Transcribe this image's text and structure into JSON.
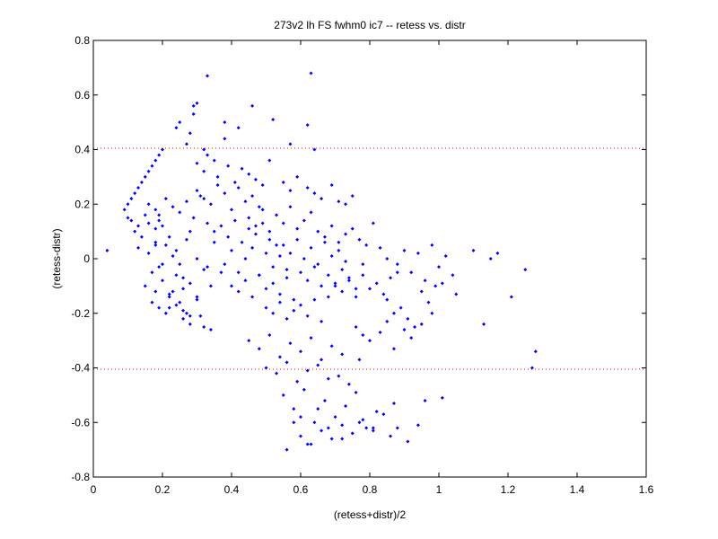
{
  "chart_data": {
    "type": "scatter",
    "title": "273v2 lh FS fwhm0 ic7 -- retess vs. distr",
    "xlabel": "(retess+distr)/2",
    "ylabel": "(retess-distr)",
    "xlim": [
      0,
      1.6
    ],
    "ylim": [
      -0.8,
      0.8
    ],
    "xticks": [
      "0",
      "0.2",
      "0.4",
      "0.6",
      "0.8",
      "1",
      "1.2",
      "1.4",
      "1.6"
    ],
    "yticks": [
      "-0.8",
      "-0.6",
      "-0.4",
      "-0.2",
      "0",
      "0.2",
      "0.4",
      "0.6",
      "0.8"
    ],
    "reference_lines": [
      0.405,
      -0.405
    ],
    "colors": {
      "points": "#0000ff",
      "reference_lines": "#ff0000"
    },
    "series": [
      {
        "x": [
          0.04,
          0.09,
          0.1,
          0.11,
          0.12,
          0.13,
          0.14,
          0.15,
          0.16,
          0.17,
          0.18,
          0.19,
          0.2,
          0.1,
          0.11,
          0.13,
          0.15,
          0.16,
          0.18,
          0.19,
          0.2,
          0.12,
          0.13,
          0.14,
          0.16,
          0.18,
          0.19,
          0.21,
          0.23,
          0.25,
          0.27,
          0.15,
          0.17,
          0.18,
          0.2,
          0.22,
          0.24,
          0.26,
          0.28,
          0.3,
          0.32,
          0.16,
          0.18,
          0.19,
          0.21,
          0.23,
          0.25,
          0.27,
          0.29,
          0.31,
          0.33,
          0.17,
          0.19,
          0.21,
          0.22,
          0.24,
          0.26,
          0.28,
          0.3,
          0.32,
          0.34,
          0.18,
          0.2,
          0.22,
          0.24,
          0.26,
          0.28,
          0.3,
          0.33,
          0.35,
          0.37,
          0.24,
          0.25,
          0.27,
          0.28,
          0.29,
          0.3,
          0.32,
          0.33,
          0.35,
          0.38,
          0.3,
          0.32,
          0.34,
          0.36,
          0.38,
          0.4,
          0.42,
          0.44,
          0.46,
          0.48,
          0.35,
          0.37,
          0.39,
          0.41,
          0.43,
          0.45,
          0.47,
          0.49,
          0.51,
          0.53,
          0.38,
          0.4,
          0.42,
          0.44,
          0.46,
          0.48,
          0.5,
          0.52,
          0.54,
          0.56,
          0.4,
          0.42,
          0.44,
          0.46,
          0.48,
          0.5,
          0.52,
          0.54,
          0.56,
          0.58,
          0.45,
          0.47,
          0.49,
          0.51,
          0.53,
          0.55,
          0.57,
          0.59,
          0.61,
          0.63,
          0.5,
          0.52,
          0.54,
          0.56,
          0.58,
          0.6,
          0.62,
          0.64,
          0.66,
          0.68,
          0.55,
          0.57,
          0.59,
          0.61,
          0.63,
          0.65,
          0.67,
          0.69,
          0.71,
          0.73,
          0.6,
          0.62,
          0.64,
          0.66,
          0.68,
          0.7,
          0.72,
          0.74,
          0.76,
          0.78,
          0.65,
          0.67,
          0.69,
          0.71,
          0.73,
          0.75,
          0.77,
          0.79,
          0.81,
          0.83,
          0.7,
          0.72,
          0.74,
          0.76,
          0.78,
          0.8,
          0.82,
          0.84,
          0.86,
          0.88,
          0.45,
          0.48,
          0.51,
          0.54,
          0.57,
          0.6,
          0.63,
          0.66,
          0.69,
          0.72,
          0.5,
          0.53,
          0.56,
          0.59,
          0.62,
          0.65,
          0.68,
          0.71,
          0.74,
          0.77,
          0.55,
          0.58,
          0.61,
          0.64,
          0.67,
          0.7,
          0.73,
          0.76,
          0.79,
          0.82,
          0.6,
          0.63,
          0.66,
          0.69,
          0.72,
          0.75,
          0.78,
          0.81,
          0.84,
          0.87,
          0.85,
          0.88,
          0.9,
          0.92,
          0.94,
          0.96,
          0.98,
          1.0,
          1.02,
          1.04,
          0.85,
          0.87,
          0.89,
          0.91,
          0.93,
          0.95,
          0.97,
          0.99,
          1.01,
          1.05,
          1.1,
          1.13,
          1.15,
          1.17,
          1.21,
          1.25,
          1.27,
          1.28,
          0.33,
          0.46,
          0.63,
          0.62,
          0.29,
          0.38,
          0.42,
          0.52,
          0.57,
          0.64,
          0.56,
          0.58,
          0.6,
          0.62,
          0.65,
          0.68,
          0.72,
          0.77,
          0.81,
          0.86,
          0.88,
          0.91,
          0.94,
          0.96,
          1.01,
          0.25,
          0.27,
          0.22,
          0.23,
          0.26,
          0.28,
          0.31,
          0.34,
          0.3,
          0.32,
          0.36,
          0.39,
          0.41,
          0.43,
          0.45,
          0.47,
          0.49,
          0.51,
          0.55,
          0.57,
          0.59,
          0.62,
          0.64,
          0.66,
          0.69,
          0.71,
          0.73,
          0.75,
          0.76,
          0.78,
          0.8,
          0.83,
          0.85,
          0.87,
          0.9,
          0.92,
          0.95,
          0.98
        ],
        "y": [
          0.03,
          0.18,
          0.2,
          0.22,
          0.24,
          0.26,
          0.28,
          0.3,
          0.32,
          0.34,
          0.36,
          0.38,
          0.4,
          0.15,
          0.14,
          0.12,
          0.16,
          0.13,
          0.11,
          0.14,
          0.12,
          0.1,
          0.04,
          0.08,
          0.02,
          0.06,
          -0.03,
          0.05,
          0.01,
          -0.02,
          0.07,
          -0.1,
          -0.05,
          -0.12,
          -0.08,
          -0.14,
          -0.06,
          -0.11,
          -0.09,
          -0.15,
          -0.04,
          0.2,
          0.18,
          0.16,
          0.22,
          0.19,
          0.17,
          0.21,
          0.15,
          0.23,
          0.13,
          -0.16,
          -0.18,
          -0.2,
          -0.13,
          -0.17,
          -0.19,
          -0.21,
          -0.14,
          -0.25,
          -0.1,
          0.05,
          -0.02,
          0.08,
          0.03,
          -0.07,
          0.1,
          0.0,
          -0.03,
          0.06,
          -0.05,
          0.48,
          0.5,
          0.42,
          0.46,
          0.53,
          0.57,
          0.4,
          0.38,
          0.36,
          0.44,
          0.25,
          0.22,
          0.2,
          0.27,
          0.24,
          0.18,
          0.26,
          0.21,
          0.23,
          0.19,
          0.1,
          0.12,
          0.08,
          0.14,
          0.06,
          0.11,
          0.09,
          0.13,
          0.07,
          0.05,
          -0.02,
          0.03,
          -0.05,
          0.0,
          0.04,
          -0.06,
          0.02,
          -0.03,
          0.01,
          -0.04,
          -0.1,
          -0.12,
          -0.08,
          -0.14,
          -0.06,
          -0.11,
          -0.09,
          -0.13,
          -0.07,
          -0.15,
          0.15,
          0.12,
          0.18,
          0.1,
          0.16,
          0.13,
          0.19,
          0.11,
          0.14,
          0.17,
          -0.18,
          -0.2,
          -0.16,
          -0.22,
          -0.19,
          -0.17,
          -0.21,
          -0.15,
          -0.23,
          -0.14,
          0.05,
          0.02,
          0.07,
          0.0,
          0.04,
          -0.02,
          0.06,
          0.01,
          0.03,
          -0.01,
          -0.05,
          -0.08,
          -0.03,
          -0.1,
          -0.06,
          -0.09,
          -0.04,
          -0.07,
          -0.11,
          -0.02,
          0.1,
          0.08,
          0.12,
          0.06,
          0.09,
          0.11,
          0.07,
          0.05,
          0.13,
          0.04,
          -0.1,
          -0.12,
          -0.08,
          -0.14,
          -0.06,
          -0.11,
          -0.09,
          -0.13,
          -0.07,
          -0.05,
          -0.3,
          -0.33,
          -0.28,
          -0.36,
          -0.31,
          -0.34,
          -0.29,
          -0.37,
          -0.32,
          -0.35,
          -0.4,
          -0.42,
          -0.38,
          -0.45,
          -0.41,
          -0.39,
          -0.44,
          -0.43,
          -0.46,
          -0.37,
          -0.5,
          -0.55,
          -0.48,
          -0.6,
          -0.52,
          -0.58,
          -0.54,
          -0.49,
          -0.62,
          -0.56,
          -0.65,
          -0.68,
          -0.63,
          -0.66,
          -0.61,
          -0.64,
          -0.59,
          -0.62,
          -0.57,
          -0.53,
          0.0,
          -0.02,
          0.03,
          -0.05,
          0.02,
          -0.08,
          0.05,
          -0.03,
          0.01,
          -0.06,
          -0.15,
          -0.2,
          -0.18,
          -0.22,
          -0.25,
          -0.12,
          -0.16,
          -0.1,
          -0.09,
          -0.13,
          0.03,
          -0.24,
          0.0,
          0.02,
          -0.14,
          -0.04,
          -0.4,
          -0.34,
          0.67,
          0.56,
          0.68,
          0.49,
          0.56,
          0.5,
          0.48,
          0.51,
          0.42,
          0.4,
          -0.7,
          -0.6,
          -0.58,
          -0.68,
          -0.55,
          -0.62,
          -0.66,
          -0.6,
          -0.63,
          -0.65,
          -0.62,
          -0.67,
          -0.61,
          -0.52,
          -0.51,
          -0.16,
          -0.2,
          -0.18,
          -0.12,
          -0.22,
          -0.24,
          -0.21,
          -0.26,
          0.35,
          0.32,
          0.3,
          0.34,
          0.28,
          0.33,
          0.31,
          0.29,
          0.27,
          0.36,
          0.28,
          0.25,
          0.3,
          0.26,
          0.24,
          0.22,
          0.27,
          0.21,
          0.2,
          0.23,
          -0.25,
          -0.28,
          -0.3,
          -0.27,
          -0.23,
          -0.33,
          -0.26,
          -0.29,
          -0.24,
          -0.2
        ]
      }
    ]
  }
}
